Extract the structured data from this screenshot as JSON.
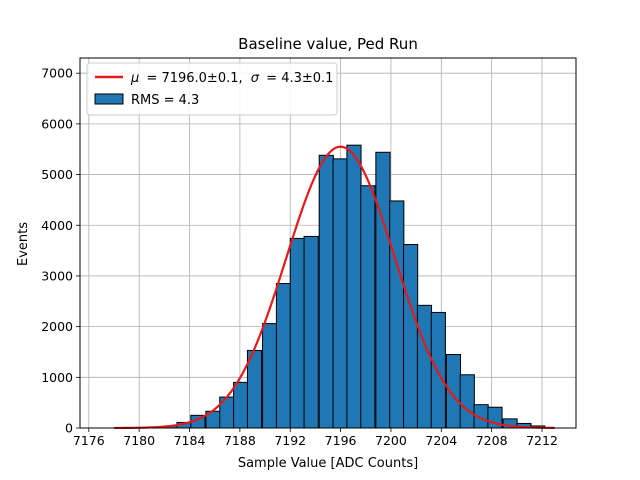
{
  "chart_data": {
    "type": "bar",
    "title": "Baseline value, Ped Run",
    "xlabel": "Sample Value [ADC Counts]",
    "ylabel": "Events",
    "xlim": [
      7175.3,
      7214.7
    ],
    "ylim": [
      0,
      7300
    ],
    "xticks": [
      7176,
      7180,
      7184,
      7188,
      7192,
      7196,
      7200,
      7204,
      7208,
      7212
    ],
    "yticks": [
      0,
      1000,
      2000,
      3000,
      4000,
      5000,
      6000,
      7000
    ],
    "grid": true,
    "legend_position": "top-left",
    "histogram": {
      "name": "RMS = 4.3",
      "color": "#1f77b4",
      "edge_color": "#000000",
      "bin_left_edges": [
        7181.9,
        7183.0,
        7184.1,
        7185.3,
        7186.4,
        7187.5,
        7188.6,
        7189.8,
        7190.9,
        7192.0,
        7193.1,
        7194.3,
        7195.4,
        7196.5,
        7197.6,
        7198.8,
        7199.9,
        7201.0,
        7202.1,
        7203.2,
        7204.4,
        7205.5,
        7206.6,
        7207.7,
        7208.9,
        7210.0,
        7211.1
      ],
      "bin_width": 1.126,
      "counts": [
        40,
        110,
        250,
        330,
        610,
        900,
        1530,
        2060,
        2850,
        3740,
        3780,
        5380,
        5310,
        5580,
        4780,
        5440,
        4480,
        3620,
        2420,
        2280,
        1450,
        1050,
        460,
        410,
        180,
        90,
        40
      ]
    },
    "fit": {
      "type": "gaussian",
      "name_parts": [
        "μ",
        " = 7196.0±0.1, ",
        "σ",
        " = 4.3±0.1"
      ],
      "color": "#e41a1c",
      "amplitude": 5550,
      "mu": 7196.0,
      "sigma": 4.3,
      "x_range": [
        7178,
        7213
      ]
    },
    "legend": {
      "fit_label": "= 7196.0±0.1,",
      "fit_mu_symbol": "μ",
      "fit_sigma_symbol": "σ",
      "fit_sigma_value": "= 4.3±0.1",
      "hist_label": "RMS = 4.3"
    }
  }
}
